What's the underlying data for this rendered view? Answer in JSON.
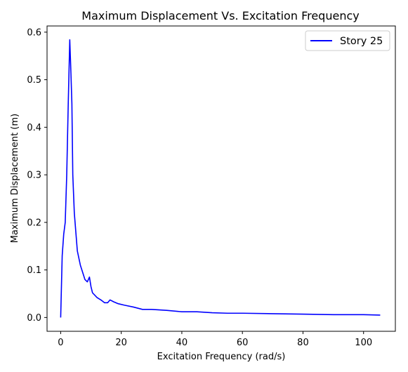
{
  "chart_data": {
    "type": "line",
    "title": "Maximum Displacement Vs. Excitation Frequency",
    "xlabel": "Excitation Frequency (rad/s)",
    "ylabel": "Maximum Displacement (m)",
    "xlim": [
      -4.5,
      110.5
    ],
    "ylim": [
      -0.029,
      0.613
    ],
    "xticks": [
      0,
      20,
      40,
      60,
      80,
      100
    ],
    "yticks": [
      0.0,
      0.1,
      0.2,
      0.3,
      0.4,
      0.5,
      0.6
    ],
    "xtick_labels": [
      "0",
      "20",
      "40",
      "60",
      "80",
      "100"
    ],
    "ytick_labels": [
      "0.0",
      "0.1",
      "0.2",
      "0.3",
      "0.4",
      "0.5",
      "0.6"
    ],
    "grid": false,
    "legend_position": "top-right",
    "series": [
      {
        "name": "Story 25",
        "color": "#0000ff",
        "x": [
          0,
          0.5,
          1,
          1.5,
          2,
          2.5,
          3,
          3.3,
          3.7,
          4,
          4.5,
          5,
          5.5,
          6.5,
          8,
          8.8,
          9.5,
          10,
          10.5,
          12,
          13.5,
          14.5,
          15.5,
          16.3,
          17.5,
          19,
          21,
          24,
          27,
          30,
          35,
          40,
          45,
          50,
          55,
          60,
          70,
          80,
          90,
          100,
          105.5
        ],
        "y": [
          0.0,
          0.13,
          0.175,
          0.2,
          0.3,
          0.45,
          0.584,
          0.53,
          0.45,
          0.3,
          0.22,
          0.18,
          0.14,
          0.11,
          0.08,
          0.075,
          0.085,
          0.065,
          0.052,
          0.042,
          0.036,
          0.031,
          0.031,
          0.037,
          0.033,
          0.029,
          0.026,
          0.022,
          0.017,
          0.017,
          0.015,
          0.012,
          0.012,
          0.01,
          0.009,
          0.009,
          0.008,
          0.007,
          0.006,
          0.006,
          0.005
        ]
      }
    ]
  }
}
